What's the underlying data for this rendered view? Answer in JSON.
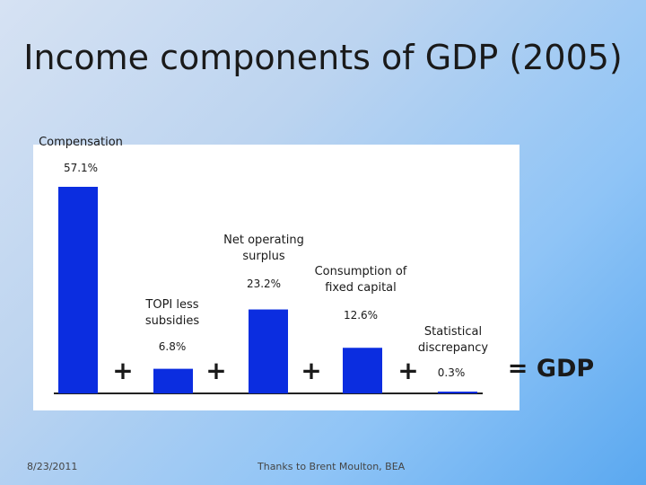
{
  "slide": {
    "title": "Income components of GDP (2005)",
    "date": "8/23/2011",
    "credit": "Thanks to Brent Moulton, BEA"
  },
  "colors": {
    "bar": "#0b2de0",
    "background_from": "#d6e2f3",
    "background_to": "#5aa8f0"
  },
  "chart_data": {
    "type": "bar",
    "categories": [
      "Compensation",
      "TOPI less subsidies",
      "Net operating surplus",
      "Consumption of fixed capital",
      "Statistical discrepancy"
    ],
    "values": [
      57.1,
      6.8,
      23.2,
      12.6,
      0.3
    ],
    "value_labels": [
      "57.1%",
      "6.8%",
      "23.2%",
      "12.6%",
      "0.3%"
    ],
    "category_labels": [
      [
        "Compensation"
      ],
      [
        "TOPI less",
        "subsidies"
      ],
      [
        "Net operating",
        "surplus"
      ],
      [
        "Consumption of",
        "fixed capital"
      ],
      [
        "Statistical",
        "discrepancy"
      ]
    ],
    "operators": [
      "+",
      "+",
      "+",
      "+"
    ],
    "result_label": "= GDP",
    "ylim": [
      0,
      57.1
    ],
    "grid": false,
    "xlabel": "",
    "ylabel": ""
  }
}
